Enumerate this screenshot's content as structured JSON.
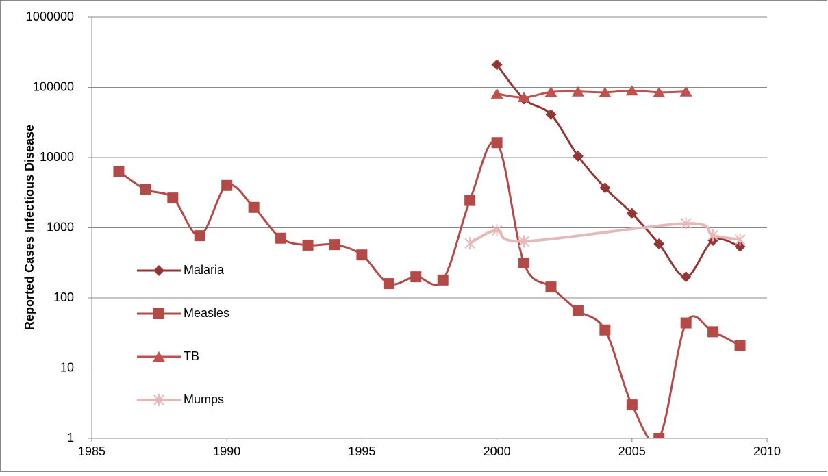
{
  "chart_data": {
    "type": "line",
    "y_label": "Reported Cases Infectious Disease",
    "xlim": [
      1985,
      2010
    ],
    "xticks": [
      1985,
      1990,
      1995,
      2000,
      2005,
      2010
    ],
    "ylim": [
      1,
      1000000
    ],
    "yticks": [
      1,
      10,
      100,
      1000,
      10000,
      100000,
      1000000
    ],
    "ylog": true,
    "grid": true,
    "smooth": true,
    "legend": "left",
    "series": [
      {
        "name": "Malaria",
        "color": "#943634",
        "marker": "diamond",
        "x": [
          2000,
          2001,
          2002,
          2003,
          2004,
          2005,
          2006,
          2007,
          2008,
          2009
        ],
        "values": [
          210000,
          68000,
          41000,
          10500,
          3700,
          1600,
          590,
          200,
          660,
          540
        ]
      },
      {
        "name": "Measles",
        "color": "#b44a48",
        "marker": "square",
        "x": [
          1986,
          1987,
          1988,
          1989,
          1990,
          1991,
          1992,
          1993,
          1994,
          1995,
          1996,
          1997,
          1998,
          1999,
          2000,
          2001,
          2002,
          2003,
          2004,
          2005,
          2006,
          2007,
          2008,
          2009
        ],
        "values": [
          6300,
          3500,
          2650,
          770,
          4000,
          1950,
          710,
          565,
          575,
          410,
          160,
          200,
          180,
          2450,
          16300,
          315,
          143,
          66,
          35,
          3,
          1,
          44,
          33,
          21
        ]
      },
      {
        "name": "TB",
        "color": "#c0504d",
        "marker": "triangle",
        "x": [
          2000,
          2001,
          2002,
          2003,
          2004,
          2005,
          2006,
          2007
        ],
        "values": [
          81000,
          72000,
          86000,
          87000,
          85000,
          90000,
          85000,
          87000
        ]
      },
      {
        "name": "Mumps",
        "color": "#e6b9b8",
        "marker": "star",
        "x": [
          1999,
          2000,
          2001,
          2007,
          2008,
          2009
        ],
        "values": [
          600,
          920,
          640,
          1150,
          780,
          680
        ]
      }
    ]
  }
}
